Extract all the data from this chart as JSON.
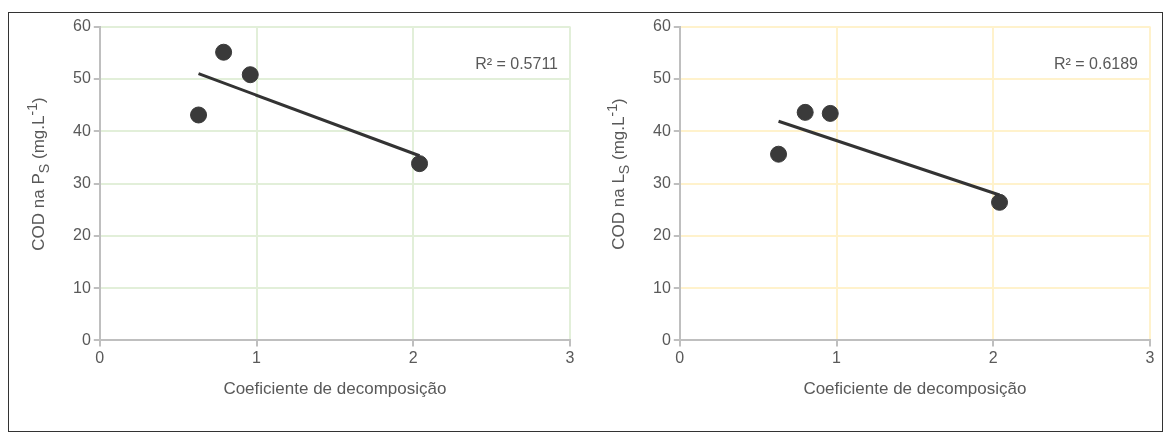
{
  "chart_data": [
    {
      "type": "scatter",
      "xlabel": "Coeficiente de decomposição",
      "ylabel": "COD na P$_{S}$ (mg.L$^{-1}$)",
      "xlim": [
        0,
        3
      ],
      "xticks": [
        0,
        1,
        2,
        3
      ],
      "ylim": [
        0,
        60
      ],
      "yticks": [
        0,
        10,
        20,
        30,
        40,
        50,
        60
      ],
      "grid": true,
      "legend": false,
      "annotations": [
        "R² = 0.5711"
      ],
      "series": [
        {
          "marker": "circle",
          "color": "#3a3a3a",
          "x": [
            0.63,
            0.79,
            0.96,
            2.04
          ],
          "values": [
            43.1,
            55.1,
            50.8,
            33.8
          ]
        },
        {
          "type": "line",
          "color": "#333333",
          "x": [
            0.63,
            2.04
          ],
          "values": [
            51.0,
            35.3
          ]
        }
      ]
    },
    {
      "type": "scatter",
      "xlabel": "Coeficiente de decomposição",
      "ylabel": "COD na L$_{S}$ (mg.L$^{-1}$)",
      "xlim": [
        0,
        3
      ],
      "xticks": [
        0,
        1,
        2,
        3
      ],
      "ylim": [
        0,
        60
      ],
      "yticks": [
        0,
        10,
        20,
        30,
        40,
        50,
        60
      ],
      "grid": true,
      "legend": false,
      "annotations": [
        "R² = 0.6189"
      ],
      "series": [
        {
          "marker": "circle",
          "color": "#3a3a3a",
          "x": [
            0.63,
            0.8,
            0.96,
            2.04
          ],
          "values": [
            35.6,
            43.6,
            43.4,
            26.4
          ]
        },
        {
          "type": "line",
          "color": "#333333",
          "x": [
            0.63,
            2.04
          ],
          "values": [
            41.9,
            27.8
          ]
        }
      ]
    }
  ]
}
